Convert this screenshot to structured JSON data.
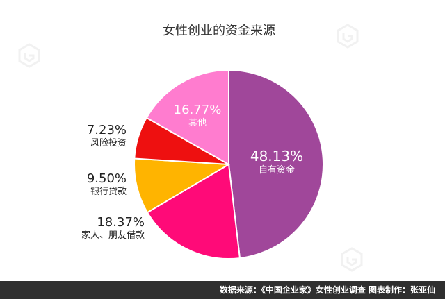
{
  "chart_data": {
    "type": "pie",
    "title": "女性创业的资金来源",
    "slices": [
      {
        "label": "自有资金",
        "value": 48.13,
        "value_text": "48.13%",
        "color": "#a0479a"
      },
      {
        "label": "家人、朋友借款",
        "value": 18.37,
        "value_text": "18.37%",
        "color": "#ff0a78"
      },
      {
        "label": "银行贷款",
        "value": 9.5,
        "value_text": "9.50%",
        "color": "#ffb400"
      },
      {
        "label": "风险投资",
        "value": 7.23,
        "value_text": "7.23%",
        "color": "#ee1010"
      },
      {
        "label": "其他",
        "value": 16.77,
        "value_text": "16.77%",
        "color": "#ff7ccf"
      }
    ]
  },
  "footer": {
    "text": "数据来源：《中国企业家》女性创业调查  图表制作：张亚仙"
  }
}
